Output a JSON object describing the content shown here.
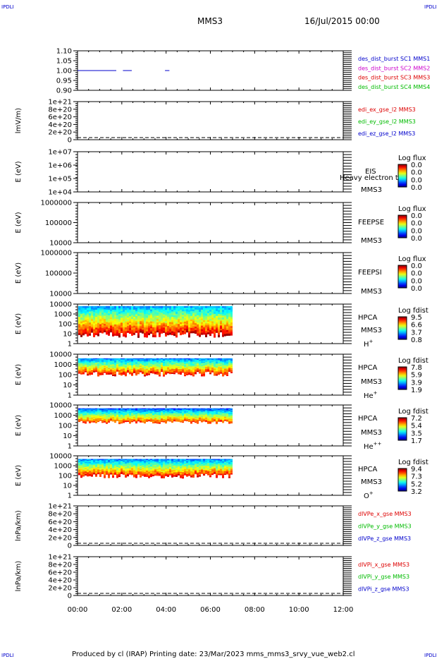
{
  "header": {
    "corner_tl": "IPDLI",
    "corner_tr": "IPDLI",
    "corner_bl": "IPDLI",
    "corner_br": "IPDLI",
    "title": "MMS3",
    "datetime": "16/Jul/2015 00:00"
  },
  "footer": {
    "text": "Produced by cl (IRAP)   Printing date: 23/Mar/2023   mms_mms3_srvy_vue_web2.cl"
  },
  "colors": {
    "blue": "#0000cc",
    "magenta": "#cc00cc",
    "red": "#dd0000",
    "green": "#00bb00"
  },
  "chart_data": [
    {
      "type": "line",
      "ylim": [
        0.9,
        1.1
      ],
      "yticks": [
        "1.10",
        "1.05",
        "1.00",
        "0.95",
        "0.90"
      ],
      "legend": [
        {
          "text": "des_dist_burst SC1 MMS1",
          "color": "blue"
        },
        {
          "text": "des_dist_burst SC2 MMS2",
          "color": "magenta"
        },
        {
          "text": "des_dist_burst SC3 MMS3",
          "color": "red"
        },
        {
          "text": "des_dist_burst SC4 MMS4",
          "color": "green"
        }
      ],
      "segments_hours": [
        [
          0.0,
          1.75
        ],
        [
          2.05,
          2.45
        ],
        [
          3.95,
          4.15
        ]
      ],
      "segment_value": 1.0
    },
    {
      "type": "line",
      "ylabel": "lmV/m)",
      "yticks": [
        "1e+21",
        "8e+20",
        "6e+20",
        "4e+20",
        "2e+20",
        "0"
      ],
      "legend": [
        {
          "text": "edi_ex_gse_l2 MMS3",
          "color": "red"
        },
        {
          "text": "edi_ey_gse_l2 MMS3",
          "color": "green"
        },
        {
          "text": "edi_ez_gse_l2 MMS3",
          "color": "blue"
        }
      ]
    },
    {
      "type": "heatmap",
      "ylabel": "E (eV)",
      "yticks": [
        "1e+07",
        "1e+06",
        "1e+05",
        "1e+04"
      ],
      "instrument": "EIS",
      "overlay": "Heavy electron to",
      "spacecraft": "MMS3",
      "colorbar_label": "Log flux",
      "colorbar_ticks": [
        "0.0",
        "0.0",
        "0.0",
        "0.0"
      ]
    },
    {
      "type": "heatmap",
      "ylabel": "E (eV)",
      "yticks": [
        "1000000",
        "100000",
        "10000"
      ],
      "instrument": "FEEPSE",
      "spacecraft": "MMS3",
      "colorbar_label": "Log flux",
      "colorbar_ticks": [
        "0.0",
        "0.0",
        "0.0",
        "0.0"
      ]
    },
    {
      "type": "heatmap",
      "ylabel": "E (eV)",
      "yticks": [
        "1000000",
        "100000",
        "10000"
      ],
      "instrument": "FEEPSI",
      "spacecraft": "MMS3",
      "colorbar_label": "Log flux",
      "colorbar_ticks": [
        "0.0",
        "0.0",
        "0.0",
        "0.0"
      ]
    },
    {
      "type": "heatmap",
      "ylabel": "E (eV)",
      "yticks": [
        "10000",
        "1000",
        "100",
        "10",
        "1"
      ],
      "instrument": "HPCA",
      "spacecraft": "MMS3",
      "species": "H",
      "species_sup": "+",
      "colorbar_label": "Log fdist",
      "colorbar_ticks": [
        "9.5",
        "6.6",
        "3.7",
        "0.8"
      ],
      "data_end_hour": 7.0
    },
    {
      "type": "heatmap",
      "ylabel": "E (eV)",
      "yticks": [
        "10000",
        "1000",
        "100",
        "10",
        "1"
      ],
      "instrument": "HPCA",
      "spacecraft": "MMS3",
      "species": "He",
      "species_sup": "+",
      "colorbar_label": "Log fdist",
      "colorbar_ticks": [
        "7.8",
        "5.9",
        "3.9",
        "1.9"
      ],
      "data_end_hour": 7.0
    },
    {
      "type": "heatmap",
      "ylabel": "E (eV)",
      "yticks": [
        "10000",
        "1000",
        "100",
        "10",
        "1"
      ],
      "instrument": "HPCA",
      "spacecraft": "MMS3",
      "species": "He",
      "species_sup": "++",
      "colorbar_label": "Log fdist",
      "colorbar_ticks": [
        "7.2",
        "5.4",
        "3.5",
        "1.7"
      ],
      "data_end_hour": 7.0
    },
    {
      "type": "heatmap",
      "ylabel": "E (eV)",
      "yticks": [
        "10000",
        "1000",
        "100",
        "10",
        "1"
      ],
      "instrument": "HPCA",
      "spacecraft": "MMS3",
      "species": "O",
      "species_sup": "+",
      "colorbar_label": "Log fdist",
      "colorbar_ticks": [
        "9.4",
        "7.3",
        "5.2",
        "3.2"
      ],
      "data_end_hour": 7.0
    },
    {
      "type": "line",
      "ylabel": "lnPa/km)",
      "yticks": [
        "1e+21",
        "8e+20",
        "6e+20",
        "4e+20",
        "2e+20",
        "0"
      ],
      "legend": [
        {
          "text": "dlVPe_x_gse MMS3",
          "color": "red"
        },
        {
          "text": "dlVPe_y_gse MMS3",
          "color": "green"
        },
        {
          "text": "dlVPe_z_gse MMS3",
          "color": "blue"
        }
      ]
    },
    {
      "type": "line",
      "ylabel": "lnPa/km)",
      "yticks": [
        "1e+21",
        "8e+20",
        "6e+20",
        "4e+20",
        "2e+20",
        "0"
      ],
      "legend": [
        {
          "text": "dlVPi_x_gse MMS3",
          "color": "red"
        },
        {
          "text": "dlVPi_y_gse MMS3",
          "color": "green"
        },
        {
          "text": "dlVPi_z_gse MMS3",
          "color": "blue"
        }
      ],
      "xticks": [
        "00:00",
        "02:00",
        "04:00",
        "06:00",
        "08:00",
        "10:00",
        "12:00"
      ],
      "xlim_hours": [
        0,
        12
      ]
    }
  ]
}
